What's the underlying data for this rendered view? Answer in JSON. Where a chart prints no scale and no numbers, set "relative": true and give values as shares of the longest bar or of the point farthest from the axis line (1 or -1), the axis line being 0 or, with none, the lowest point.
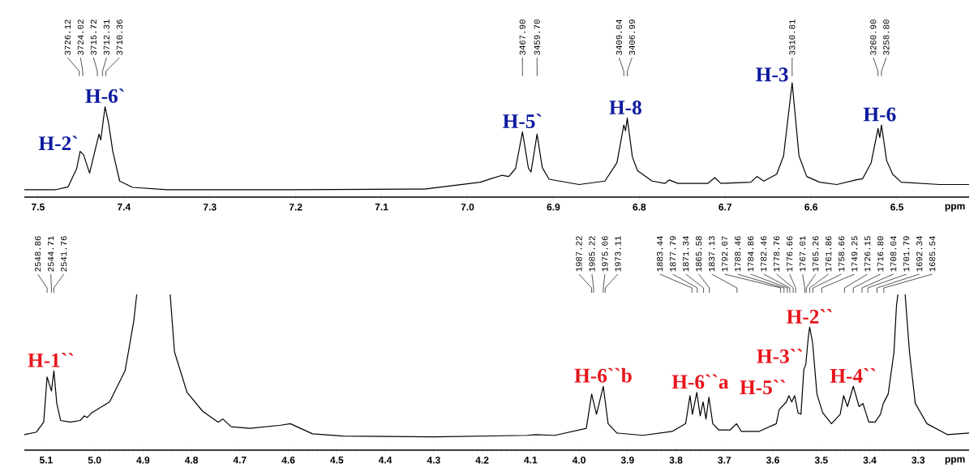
{
  "chart_data": [
    {
      "type": "line",
      "relative": true,
      "xlabel": "ppm",
      "xlim": [
        7.516,
        6.416
      ],
      "xticks": [
        7.5,
        7.4,
        7.3,
        7.2,
        7.1,
        {
          "value": 7,
          "label": "7.0"
        },
        6.9,
        6.8,
        6.7,
        6.6,
        6.5
      ],
      "x": [
        7.516,
        7.48,
        7.465,
        7.455,
        7.451,
        7.447,
        7.44,
        7.432,
        7.429,
        7.427,
        7.422,
        7.418,
        7.413,
        7.405,
        7.39,
        7.35,
        7.2,
        7.05,
        6.985,
        6.973,
        6.96,
        6.952,
        6.944,
        6.936,
        6.929,
        6.926,
        6.919,
        6.913,
        6.905,
        6.87,
        6.84,
        6.826,
        6.818,
        6.816,
        6.814,
        6.808,
        6.802,
        6.785,
        6.77,
        6.765,
        6.755,
        6.72,
        6.712,
        6.705,
        6.67,
        6.663,
        6.655,
        6.64,
        6.632,
        6.622,
        6.614,
        6.605,
        6.59,
        6.57,
        6.548,
        6.54,
        6.53,
        6.522,
        6.52,
        6.518,
        6.512,
        6.505,
        6.495,
        6.45,
        6.416
      ],
      "series": [
        {
          "color": "#000000",
          "values": [
            0.064,
            0.064,
            0.09,
            0.25,
            0.4,
            0.37,
            0.21,
            0.46,
            0.55,
            0.5,
            0.79,
            0.65,
            0.4,
            0.14,
            0.085,
            0.064,
            0.064,
            0.07,
            0.13,
            0.16,
            0.19,
            0.18,
            0.25,
            0.57,
            0.25,
            0.22,
            0.55,
            0.26,
            0.156,
            0.11,
            0.14,
            0.3,
            0.63,
            0.58,
            0.69,
            0.35,
            0.23,
            0.14,
            0.12,
            0.15,
            0.12,
            0.12,
            0.17,
            0.12,
            0.13,
            0.18,
            0.14,
            0.2,
            0.36,
            1.0,
            0.36,
            0.18,
            0.13,
            0.11,
            0.15,
            0.16,
            0.3,
            0.6,
            0.52,
            0.63,
            0.32,
            0.2,
            0.13,
            0.11,
            0.11
          ]
        }
      ],
      "annotations": [
        {
          "text": "3726.12",
          "x": 7.452
        },
        {
          "text": "3724.02",
          "x": 7.448
        },
        {
          "text": "3715.72",
          "x": 7.431
        },
        {
          "text": "3712.31",
          "x": 7.425
        },
        {
          "text": "3710.36",
          "x": 7.421
        },
        {
          "text": "3467.90",
          "x": 6.936
        },
        {
          "text": "3459.70",
          "x": 6.919
        },
        {
          "text": "3409.04",
          "x": 6.818
        },
        {
          "text": "3406.99",
          "x": 6.814
        },
        {
          "text": "3310.81",
          "x": 6.622
        },
        {
          "text": "3260.90",
          "x": 6.522
        },
        {
          "text": "3258.80",
          "x": 6.518
        },
        {
          "text": "H-2`",
          "x": 7.449,
          "y": 0.4
        },
        {
          "text": "H-6`",
          "x": 7.422,
          "y": 0.79
        },
        {
          "text": "H-5`",
          "x": 6.936,
          "y": 0.57
        },
        {
          "text": "H-8",
          "x": 6.816,
          "y": 0.69
        },
        {
          "text": "H-3",
          "x": 6.622,
          "y": 1.0
        },
        {
          "text": "H-6",
          "x": 6.52,
          "y": 0.63
        }
      ]
    },
    {
      "type": "line",
      "relative": true,
      "xlabel": "ppm",
      "xlim": [
        5.145,
        3.195
      ],
      "xticks": [
        5.1,
        {
          "value": 5,
          "label": "5.0"
        },
        4.9,
        4.8,
        4.7,
        4.6,
        4.5,
        4.4,
        4.3,
        4.2,
        4.1,
        {
          "value": 4,
          "label": "4.0"
        },
        3.9,
        3.8,
        3.7,
        3.6,
        3.5,
        3.4,
        3.3
      ],
      "x": [
        5.145,
        5.12,
        5.105,
        5.098,
        5.093,
        5.089,
        5.084,
        5.078,
        5.07,
        5.05,
        5.03,
        5.021,
        5.015,
        5.006,
        4.969,
        4.937,
        4.919,
        4.913,
        4.88,
        4.844,
        4.835,
        4.809,
        4.777,
        4.745,
        4.735,
        4.718,
        4.68,
        4.616,
        4.596,
        4.55,
        4.487,
        4.3,
        4.107,
        4.09,
        4.05,
        3.985,
        3.974,
        3.964,
        3.95,
        3.94,
        3.922,
        3.868,
        3.808,
        3.78,
        3.771,
        3.766,
        3.757,
        3.75,
        3.744,
        3.738,
        3.732,
        3.724,
        3.712,
        3.688,
        3.675,
        3.665,
        3.629,
        3.593,
        3.587,
        3.572,
        3.567,
        3.561,
        3.555,
        3.548,
        3.542,
        3.536,
        3.532,
        3.527,
        3.524,
        3.518,
        3.509,
        3.497,
        3.479,
        3.461,
        3.454,
        3.446,
        3.434,
        3.422,
        3.414,
        3.402,
        3.389,
        3.378,
        3.372,
        3.362,
        3.35,
        3.345,
        3.342,
        3.335,
        3.327,
        3.318,
        3.306,
        3.282,
        3.24,
        3.195
      ],
      "series": [
        {
          "color": "#000000",
          "values": [
            0.1,
            0.116,
            0.18,
            0.47,
            0.42,
            0.38,
            0.51,
            0.3,
            0.19,
            0.18,
            0.19,
            0.22,
            0.21,
            0.24,
            0.31,
            0.51,
            0.83,
            1.0,
            null,
            1.0,
            0.63,
            0.37,
            0.25,
            0.18,
            0.2,
            0.15,
            0.14,
            0.16,
            0.17,
            0.105,
            0.09,
            0.085,
            0.095,
            0.1,
            0.095,
            0.14,
            0.36,
            0.23,
            0.41,
            0.17,
            0.11,
            0.095,
            0.12,
            0.17,
            0.35,
            0.23,
            0.37,
            0.22,
            0.31,
            0.2,
            0.34,
            0.17,
            0.13,
            0.13,
            0.17,
            0.12,
            0.12,
            0.17,
            0.26,
            0.31,
            0.35,
            0.31,
            0.35,
            0.24,
            0.23,
            0.52,
            0.55,
            0.72,
            0.79,
            0.69,
            0.36,
            0.24,
            0.17,
            0.23,
            0.35,
            0.28,
            0.41,
            0.28,
            0.3,
            0.18,
            0.18,
            0.23,
            0.3,
            0.36,
            0.63,
            0.92,
            1.0,
            null,
            1.0,
            0.63,
            0.3,
            0.17,
            0.1,
            0.11
          ]
        }
      ],
      "annotations": [
        {
          "text": "2548.86",
          "x": 5.098
        },
        {
          "text": "2544.71",
          "x": 5.089
        },
        {
          "text": "2541.76",
          "x": 5.084
        },
        {
          "text": "1987.22",
          "x": 3.974
        },
        {
          "text": "1985.22",
          "x": 3.97
        },
        {
          "text": "1975.06",
          "x": 3.95
        },
        {
          "text": "1973.11",
          "x": 3.946
        },
        {
          "text": "1883.44",
          "x": 3.767
        },
        {
          "text": "1877.79",
          "x": 3.756
        },
        {
          "text": "1871.34",
          "x": 3.743
        },
        {
          "text": "1865.58",
          "x": 3.731
        },
        {
          "text": "1837.13",
          "x": 3.674
        },
        {
          "text": "1792.07",
          "x": 3.584
        },
        {
          "text": "1788.46",
          "x": 3.577
        },
        {
          "text": "1784.86",
          "x": 3.57
        },
        {
          "text": "1782.46",
          "x": 3.565
        },
        {
          "text": "1778.76",
          "x": 3.558
        },
        {
          "text": "1776.66",
          "x": 3.553
        },
        {
          "text": "1767.01",
          "x": 3.534
        },
        {
          "text": "1765.26",
          "x": 3.531
        },
        {
          "text": "1761.86",
          "x": 3.524
        },
        {
          "text": "1758.66",
          "x": 3.517
        },
        {
          "text": "1749.25",
          "x": 3.499
        },
        {
          "text": "1726.15",
          "x": 3.452
        },
        {
          "text": "1716.80",
          "x": 3.434
        },
        {
          "text": "1708.04",
          "x": 3.416
        },
        {
          "text": "1701.79",
          "x": 3.404
        },
        {
          "text": "1692.34",
          "x": 3.385
        },
        {
          "text": "1685.54",
          "x": 3.371
        },
        {
          "text": "H-1``",
          "x": 5.09,
          "y": 0.51
        },
        {
          "text": "H-6``b",
          "x": 3.95,
          "y": 0.41
        },
        {
          "text": "H-6``a",
          "x": 3.75,
          "y": 0.37
        },
        {
          "text": "H-5``",
          "x": 3.565,
          "y": 0.35
        },
        {
          "text": "H-3``",
          "x": 3.53,
          "y": 0.55
        },
        {
          "text": "H-2``",
          "x": 3.524,
          "y": 0.79
        },
        {
          "text": "H-4``",
          "x": 3.434,
          "y": 0.41
        }
      ]
    }
  ]
}
